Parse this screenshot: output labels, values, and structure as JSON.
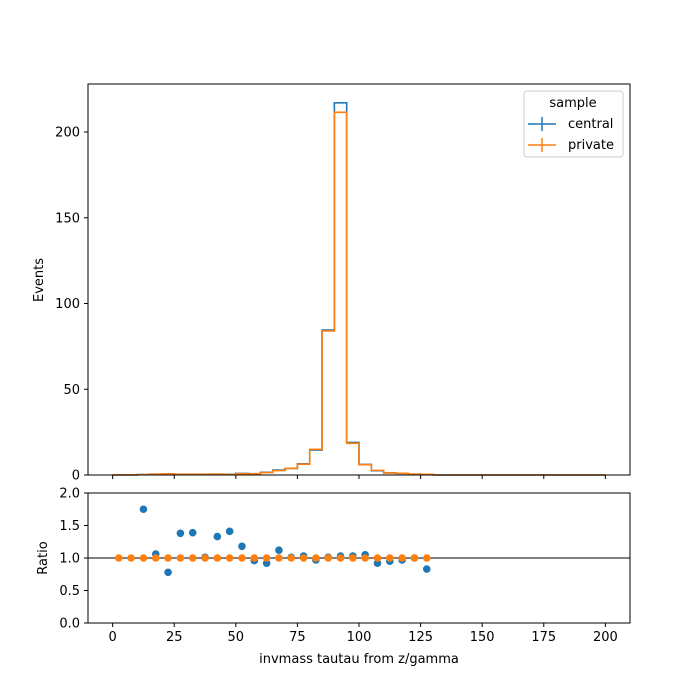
{
  "chart_data": [
    {
      "type": "histogram-step",
      "xlabel": "",
      "ylabel": "Events",
      "xlim": [
        -10,
        210
      ],
      "ylim": [
        0,
        228
      ],
      "xticks": [
        0,
        25,
        50,
        75,
        100,
        125,
        150,
        175,
        200
      ],
      "yticks": [
        0,
        50,
        100,
        150,
        200
      ],
      "bin_edges": [
        0,
        5,
        10,
        15,
        20,
        25,
        30,
        35,
        40,
        45,
        50,
        55,
        60,
        65,
        70,
        75,
        80,
        85,
        90,
        95,
        100,
        105,
        110,
        115,
        120,
        125,
        130,
        135,
        140,
        145,
        150,
        155,
        160,
        165,
        170,
        175,
        180,
        185,
        190,
        195,
        200
      ],
      "legend": {
        "title": "sample",
        "position": "top-right"
      },
      "series": [
        {
          "name": "central",
          "color": "#1f77b4",
          "values": [
            0,
            0,
            0.3,
            0.5,
            0.6,
            0.5,
            0.5,
            0.5,
            0.5,
            0.4,
            0.9,
            0.8,
            1.6,
            2.9,
            3.8,
            6.5,
            14.5,
            84.5,
            217,
            19,
            6.2,
            2.5,
            1.2,
            1.0,
            0.5,
            0.3,
            0,
            0,
            0,
            0,
            0,
            0,
            0,
            0,
            0,
            0,
            0,
            0,
            0,
            0
          ]
        },
        {
          "name": "private",
          "color": "#ff7f0e",
          "values": [
            0.1,
            0.1,
            0.2,
            0.5,
            0.6,
            0.4,
            0.4,
            0.4,
            0.5,
            0.3,
            0.7,
            0.7,
            1.4,
            2.6,
            3.9,
            6.3,
            15.0,
            84.0,
            211.5,
            18.5,
            6.0,
            2.7,
            1.2,
            1.0,
            0.5,
            0.4,
            0,
            0,
            0,
            0,
            0,
            0,
            0,
            0,
            0,
            0,
            0,
            0,
            0,
            0
          ]
        }
      ]
    },
    {
      "type": "scatter",
      "xlabel": "invmass tautau from z/gamma",
      "ylabel": "Ratio",
      "xlim": [
        -10,
        210
      ],
      "ylim": [
        0,
        2
      ],
      "xticks": [
        0,
        25,
        50,
        75,
        100,
        125,
        150,
        175,
        200
      ],
      "yticks": [
        0.0,
        0.5,
        1.0,
        1.5,
        2.0
      ],
      "reference_line": 1.0,
      "series": [
        {
          "name": "central",
          "color": "#1f77b4",
          "x": [
            12.5,
            17.5,
            22.5,
            27.5,
            32.5,
            37.5,
            42.5,
            47.5,
            52.5,
            57.5,
            62.5,
            67.5,
            72.5,
            77.5,
            82.5,
            87.5,
            92.5,
            97.5,
            102.5,
            107.5,
            112.5,
            117.5,
            122.5,
            127.5
          ],
          "y": [
            1.75,
            1.06,
            0.78,
            1.38,
            1.39,
            1.01,
            1.33,
            1.41,
            1.18,
            0.96,
            0.92,
            1.12,
            1.01,
            1.03,
            0.97,
            1.01,
            1.03,
            1.03,
            1.05,
            0.92,
            0.95,
            0.97,
            1.0,
            0.83
          ]
        },
        {
          "name": "private",
          "color": "#ff7f0e",
          "x": [
            2.5,
            7.5,
            12.5,
            17.5,
            22.5,
            27.5,
            32.5,
            37.5,
            42.5,
            47.5,
            52.5,
            57.5,
            62.5,
            67.5,
            72.5,
            77.5,
            82.5,
            87.5,
            92.5,
            97.5,
            102.5,
            107.5,
            112.5,
            117.5,
            122.5,
            127.5
          ],
          "y": [
            1,
            1,
            1,
            1,
            1,
            1,
            1,
            1,
            1,
            1,
            1,
            1,
            1,
            1,
            1,
            1,
            1,
            1,
            1,
            1,
            1,
            1,
            1,
            1,
            1,
            1
          ]
        }
      ]
    }
  ]
}
